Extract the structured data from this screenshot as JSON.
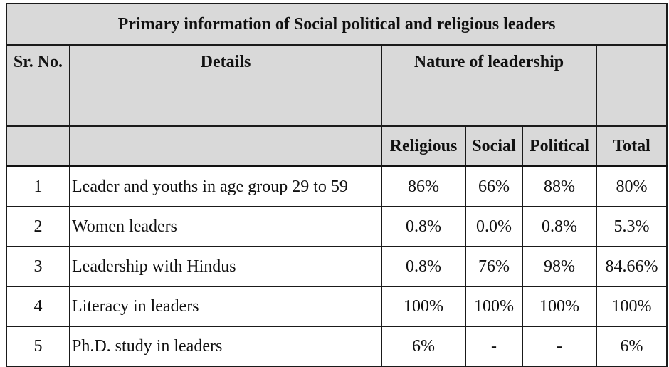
{
  "table": {
    "title": "Primary information of Social political and religious leaders",
    "headers": {
      "sr_no": "Sr. No.",
      "details": "Details",
      "nature": "Nature of leadership",
      "total_top": ""
    },
    "subheaders": {
      "sr_no": "",
      "details": "",
      "religious": "Religious",
      "social": "Social",
      "political": "Political",
      "total": "Total"
    },
    "rows": [
      {
        "sr": "1",
        "details": "Leader and youths in age group 29 to 59",
        "religious": "86%",
        "social": "66%",
        "political": "88%",
        "total": "80%"
      },
      {
        "sr": "2",
        "details": "Women leaders",
        "religious": "0.8%",
        "social": "0.0%",
        "political": "0.8%",
        "total": "5.3%"
      },
      {
        "sr": "3",
        "details": "Leadership with Hindus",
        "religious": "0.8%",
        "social": "76%",
        "political": "98%",
        "total": "84.66%"
      },
      {
        "sr": "4",
        "details": "Literacy in leaders",
        "religious": "100%",
        "social": "100%",
        "political": "100%",
        "total": "100%"
      },
      {
        "sr": "5",
        "details": "Ph.D. study in leaders",
        "religious": "6%",
        "social": "-",
        "political": "-",
        "total": "6%"
      }
    ]
  }
}
